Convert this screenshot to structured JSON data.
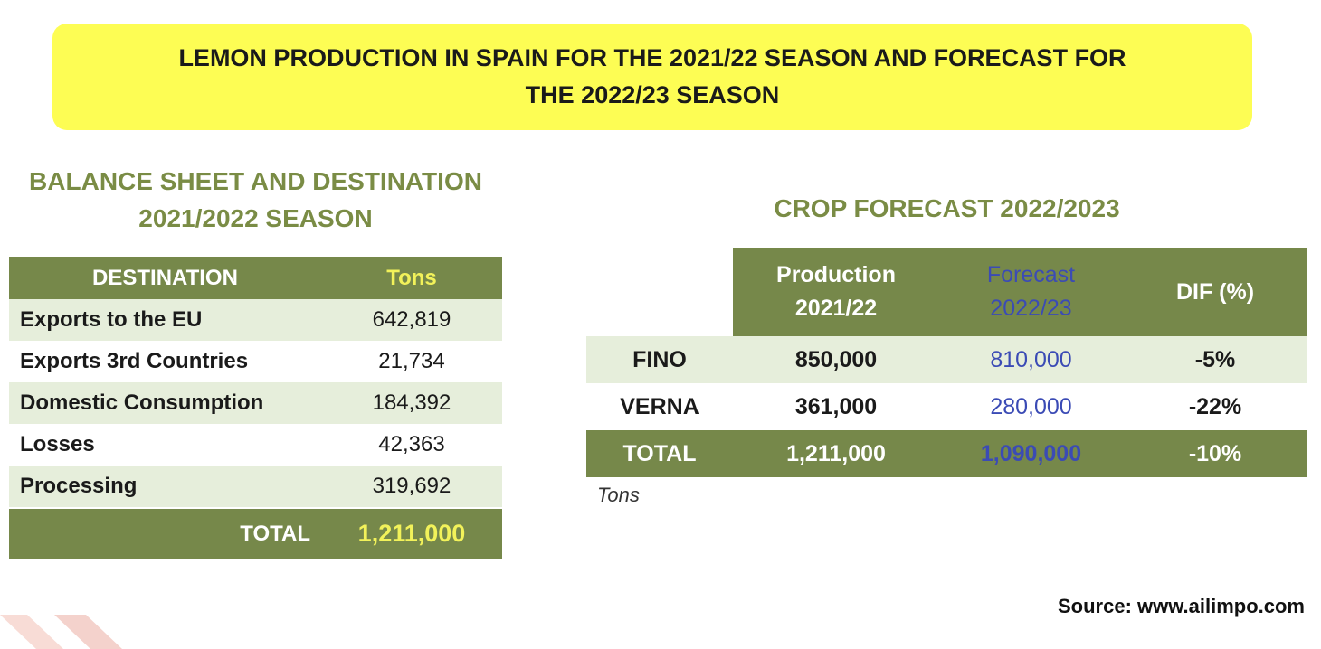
{
  "banner": {
    "title": "LEMON PRODUCTION IN SPAIN FOR THE 2021/22 SEASON AND FORECAST FOR THE 2022/23 SEASON"
  },
  "left": {
    "title": "BALANCE SHEET AND DESTINATION 2021/2022 SEASON",
    "header": {
      "destination": "DESTINATION",
      "tons": "Tons"
    },
    "rows": [
      {
        "label": "Exports to the EU",
        "value": "642,819"
      },
      {
        "label": "Exports 3rd Countries",
        "value": "21,734"
      },
      {
        "label": "Domestic Consumption",
        "value": "184,392"
      },
      {
        "label": "Losses",
        "value": "42,363"
      },
      {
        "label": "Processing",
        "value": "319,692"
      }
    ],
    "total": {
      "label": "TOTAL",
      "value": "1,211,000"
    }
  },
  "right": {
    "title": "CROP FORECAST 2022/2023",
    "header": {
      "production_l1": "Production",
      "production_l2": "2021/22",
      "forecast_l1": "Forecast",
      "forecast_l2": "2022/23",
      "dif": "DIF (%)"
    },
    "rows": [
      {
        "variety": "FINO",
        "production": "850,000",
        "forecast": "810,000",
        "dif": "-5%"
      },
      {
        "variety": "VERNA",
        "production": "361,000",
        "forecast": "280,000",
        "dif": "-22%"
      }
    ],
    "total": {
      "variety": "TOTAL",
      "production": "1,211,000",
      "forecast": "1,090,000",
      "dif": "-10%"
    },
    "unit_note": "Tons"
  },
  "source": "Source: www.ailimpo.com",
  "colors": {
    "banner": "#fdfd54",
    "olive": "#76884a",
    "shade": "#e6eedb",
    "title_green": "#7a8c45",
    "forecast_blue": "#3b4bb5",
    "accent_yellow": "#f2f25a",
    "deco_red": "#f4d2cc"
  }
}
